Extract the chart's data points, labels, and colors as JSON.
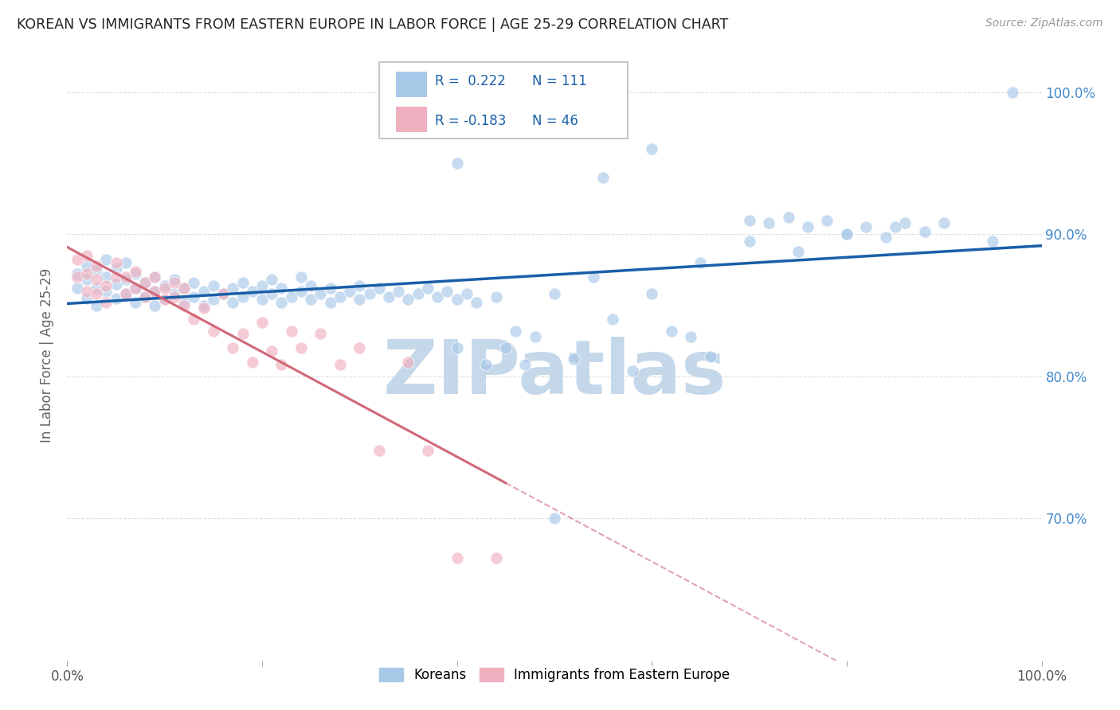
{
  "title": "KOREAN VS IMMIGRANTS FROM EASTERN EUROPE IN LABOR FORCE | AGE 25-29 CORRELATION CHART",
  "source": "Source: ZipAtlas.com",
  "ylabel": "In Labor Force | Age 25-29",
  "legend_label1": "Koreans",
  "legend_label2": "Immigrants from Eastern Europe",
  "r1": 0.222,
  "n1": 111,
  "r2": -0.183,
  "n2": 46,
  "blue_color": "#a8c8e8",
  "pink_color": "#f0b0c0",
  "blue_line_color": "#1a5fa8",
  "pink_line_color": "#d06878",
  "watermark": "ZIPatlas",
  "watermark_color": "#c5d8ea",
  "background_color": "#ffffff",
  "grid_color": "#d8d8d8",
  "title_color": "#222222",
  "right_tick_color": "#4488cc",
  "xlim": [
    0.0,
    1.0
  ],
  "ylim": [
    0.6,
    1.03
  ],
  "blue_scatter_x": [
    0.01,
    0.01,
    0.02,
    0.02,
    0.02,
    0.03,
    0.03,
    0.03,
    0.04,
    0.04,
    0.04,
    0.05,
    0.05,
    0.05,
    0.06,
    0.06,
    0.06,
    0.07,
    0.07,
    0.07,
    0.08,
    0.08,
    0.09,
    0.09,
    0.09,
    0.1,
    0.1,
    0.11,
    0.11,
    0.12,
    0.12,
    0.13,
    0.13,
    0.14,
    0.14,
    0.15,
    0.15,
    0.16,
    0.17,
    0.17,
    0.18,
    0.18,
    0.19,
    0.2,
    0.2,
    0.21,
    0.21,
    0.22,
    0.22,
    0.23,
    0.24,
    0.24,
    0.25,
    0.25,
    0.26,
    0.27,
    0.27,
    0.28,
    0.29,
    0.3,
    0.3,
    0.31,
    0.32,
    0.33,
    0.34,
    0.35,
    0.36,
    0.37,
    0.38,
    0.39,
    0.4,
    0.4,
    0.41,
    0.42,
    0.43,
    0.44,
    0.45,
    0.46,
    0.47,
    0.48,
    0.5,
    0.5,
    0.52,
    0.54,
    0.56,
    0.58,
    0.6,
    0.62,
    0.64,
    0.66,
    0.7,
    0.72,
    0.74,
    0.76,
    0.78,
    0.8,
    0.82,
    0.84,
    0.86,
    0.88,
    0.4,
    0.55,
    0.6,
    0.65,
    0.7,
    0.75,
    0.8,
    0.85,
    0.9,
    0.95,
    0.97
  ],
  "blue_scatter_y": [
    0.862,
    0.872,
    0.855,
    0.868,
    0.878,
    0.85,
    0.862,
    0.875,
    0.86,
    0.87,
    0.882,
    0.855,
    0.865,
    0.876,
    0.858,
    0.868,
    0.88,
    0.852,
    0.862,
    0.872,
    0.856,
    0.866,
    0.85,
    0.86,
    0.87,
    0.854,
    0.864,
    0.858,
    0.868,
    0.852,
    0.862,
    0.856,
    0.866,
    0.85,
    0.86,
    0.854,
    0.864,
    0.858,
    0.852,
    0.862,
    0.856,
    0.866,
    0.86,
    0.854,
    0.864,
    0.858,
    0.868,
    0.852,
    0.862,
    0.856,
    0.86,
    0.87,
    0.854,
    0.864,
    0.858,
    0.852,
    0.862,
    0.856,
    0.86,
    0.854,
    0.864,
    0.858,
    0.862,
    0.856,
    0.86,
    0.854,
    0.858,
    0.862,
    0.856,
    0.86,
    0.82,
    0.854,
    0.858,
    0.852,
    0.808,
    0.856,
    0.82,
    0.832,
    0.808,
    0.828,
    0.7,
    0.858,
    0.812,
    0.87,
    0.84,
    0.804,
    0.858,
    0.832,
    0.828,
    0.814,
    0.91,
    0.908,
    0.912,
    0.905,
    0.91,
    0.9,
    0.905,
    0.898,
    0.908,
    0.902,
    0.95,
    0.94,
    0.96,
    0.88,
    0.895,
    0.888,
    0.9,
    0.905,
    0.908,
    0.895,
    1.0
  ],
  "pink_scatter_x": [
    0.01,
    0.01,
    0.02,
    0.02,
    0.02,
    0.03,
    0.03,
    0.03,
    0.04,
    0.04,
    0.05,
    0.05,
    0.06,
    0.06,
    0.07,
    0.07,
    0.08,
    0.08,
    0.09,
    0.09,
    0.1,
    0.1,
    0.11,
    0.11,
    0.12,
    0.12,
    0.13,
    0.14,
    0.15,
    0.16,
    0.17,
    0.18,
    0.19,
    0.2,
    0.21,
    0.22,
    0.23,
    0.24,
    0.26,
    0.28,
    0.3,
    0.32,
    0.35,
    0.37,
    0.4,
    0.44
  ],
  "pink_scatter_y": [
    0.87,
    0.882,
    0.86,
    0.872,
    0.885,
    0.858,
    0.868,
    0.878,
    0.852,
    0.864,
    0.87,
    0.88,
    0.858,
    0.87,
    0.862,
    0.874,
    0.856,
    0.866,
    0.86,
    0.87,
    0.854,
    0.862,
    0.856,
    0.866,
    0.85,
    0.862,
    0.84,
    0.848,
    0.832,
    0.858,
    0.82,
    0.83,
    0.81,
    0.838,
    0.818,
    0.808,
    0.832,
    0.82,
    0.83,
    0.808,
    0.82,
    0.748,
    0.81,
    0.748,
    0.672,
    0.672
  ],
  "y_ticks": [
    0.7,
    0.8,
    0.9,
    1.0
  ],
  "y_tick_labels_right": [
    "70.0%",
    "80.0%",
    "90.0%",
    "100.0%"
  ],
  "x_ticks": [
    0.0,
    0.2,
    0.4,
    0.6,
    0.8,
    1.0
  ],
  "x_tick_labels": [
    "0.0%",
    "",
    "",
    "",
    "",
    "100.0%"
  ]
}
